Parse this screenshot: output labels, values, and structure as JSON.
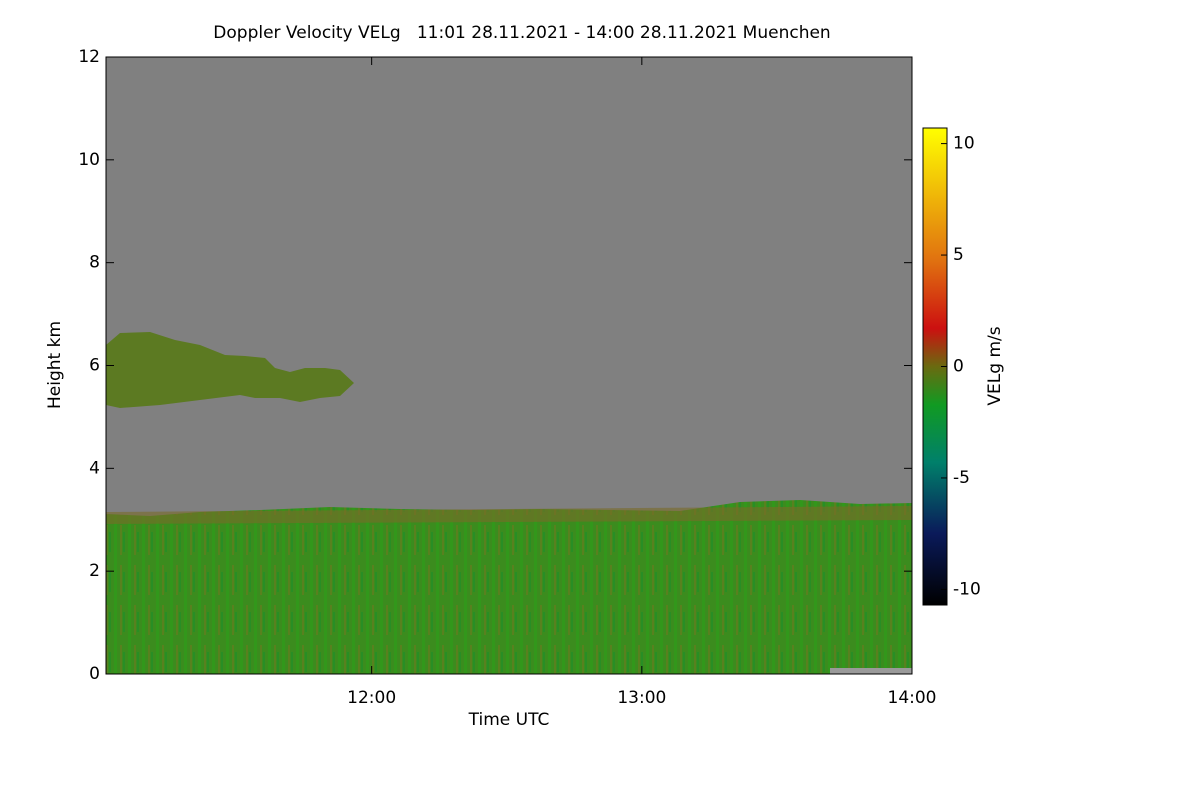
{
  "chart_data": {
    "type": "heatmap",
    "title": "Doppler Velocity VELg   11:01 28.11.2021 - 14:00 28.11.2021 Muenchen",
    "xlabel": "Time UTC",
    "ylabel": "Height km",
    "xlim": [
      11.0167,
      14.0
    ],
    "xticks": [
      {
        "value": 12,
        "label": "12:00"
      },
      {
        "value": 13,
        "label": "13:00"
      },
      {
        "value": 14,
        "label": "14:00"
      }
    ],
    "ylim": [
      0,
      12
    ],
    "yticks": [
      0,
      2,
      4,
      6,
      8,
      10,
      12
    ],
    "colorbar": {
      "label": "VELg m/s",
      "lim": [
        -10.7,
        10.7
      ],
      "ticks": [
        -10,
        -5,
        0,
        5,
        10
      ]
    }
  }
}
